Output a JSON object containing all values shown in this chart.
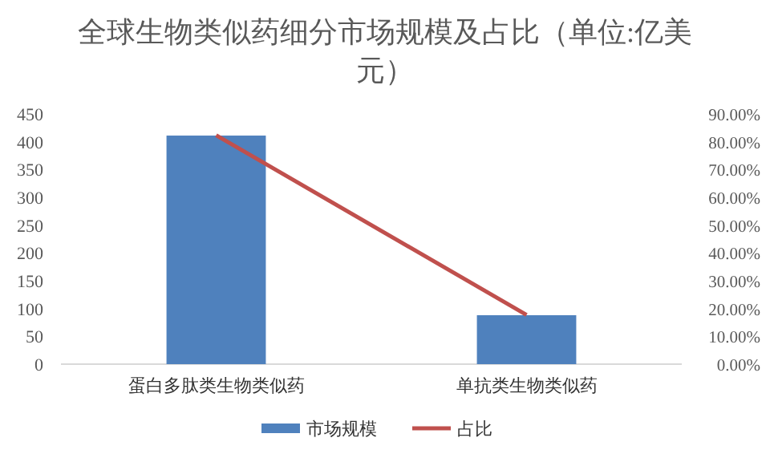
{
  "chart_data": {
    "type": "bar",
    "title": "全球生物类似药细分市场规模及占比（单位:亿美元）",
    "categories": [
      "蛋白多肽类生物类似药",
      "单抗类生物类似药"
    ],
    "series": [
      {
        "name": "市场规模",
        "color": "#4f81bd",
        "values": [
          411,
          88
        ]
      },
      {
        "name": "占比",
        "type": "line",
        "axis": "y2",
        "color": "#c0504d",
        "values": [
          82.3,
          17.7
        ]
      }
    ],
    "ylim": [
      0,
      450
    ],
    "yticks": [
      0,
      50,
      100,
      150,
      200,
      250,
      300,
      350,
      400,
      450
    ],
    "y2lim": [
      0,
      90
    ],
    "y2ticks": [
      {
        "value": 0,
        "label": "0.00%"
      },
      {
        "value": 10,
        "label": "10.00%"
      },
      {
        "value": 20,
        "label": "20.00%"
      },
      {
        "value": 30,
        "label": "30.00%"
      },
      {
        "value": 40,
        "label": "40.00%"
      },
      {
        "value": 50,
        "label": "50.00%"
      },
      {
        "value": 60,
        "label": "60.00%"
      },
      {
        "value": 70,
        "label": "70.00%"
      },
      {
        "value": 80,
        "label": "80.00%"
      },
      {
        "value": 90,
        "label": "90.00%"
      }
    ],
    "grid": false,
    "legend": "bottom",
    "marker": "none"
  }
}
